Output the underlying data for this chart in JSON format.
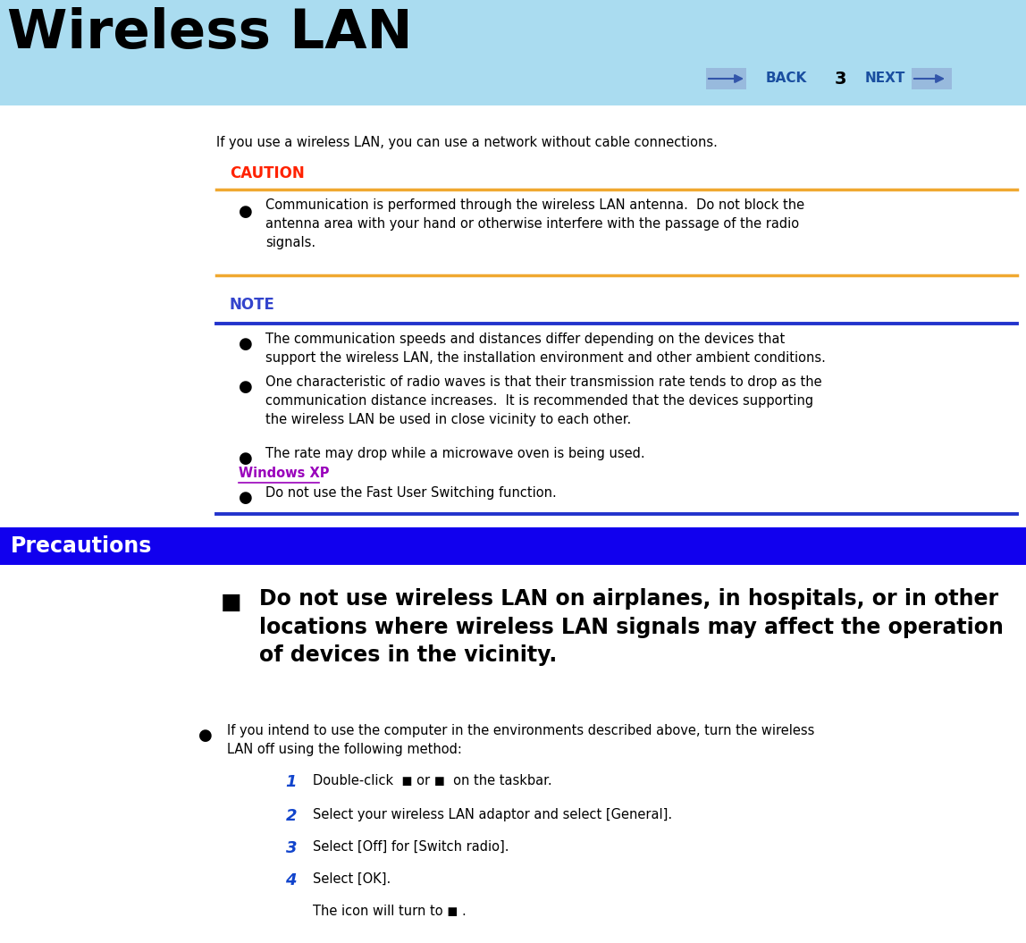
{
  "title": "Wireless LAN",
  "title_color": "#000000",
  "header_bg": "#aadcf0",
  "page_bg": "#ffffff",
  "back_next_color": "#1a4fa0",
  "page_number": "3",
  "intro_text": "If you use a wireless LAN, you can use a network without cable connections.",
  "caution_label": "CAUTION",
  "caution_color": "#ff2200",
  "caution_line_color": "#f0a830",
  "caution_bullet": "Communication is performed through the wireless LAN antenna.  Do not block the\nantenna area with your hand or otherwise interfere with the passage of the radio\nsignals.",
  "note_label": "NOTE",
  "note_color": "#3344cc",
  "note_line_color": "#2233cc",
  "note_bullet1": "The communication speeds and distances differ depending on the devices that\nsupport the wireless LAN, the installation environment and other ambient conditions.",
  "note_bullet2": "One characteristic of radio waves is that their transmission rate tends to drop as the\ncommunication distance increases.  It is recommended that the devices supporting\nthe wireless LAN be used in close vicinity to each other.",
  "note_bullet3": "The rate may drop while a microwave oven is being used.",
  "windows_xp_label": "Windows XP",
  "windows_xp_color": "#9900bb",
  "windows_xp_bullet": "Do not use the Fast User Switching function.",
  "precautions_label": "Precautions",
  "precautions_bg": "#1100ee",
  "precautions_text_color": "#ffffff",
  "prec_main_bullet": "Do not use wireless LAN on airplanes, in hospitals, or in other\nlocations where wireless LAN signals may affect the operation\nof devices in the vicinity.",
  "prec_sub_bullet": "If you intend to use the computer in the environments described above, turn the wireless\nLAN off using the following method:",
  "step1": "Double-click  ◼ or ◼  on the taskbar.",
  "step2": "Select your wireless LAN adaptor and select [General].",
  "step3": "Select [Off] for [Switch radio].",
  "step4": "Select [OK].",
  "icon_line": "The icon will turn to ◼ .",
  "steps_color": "#1144cc"
}
